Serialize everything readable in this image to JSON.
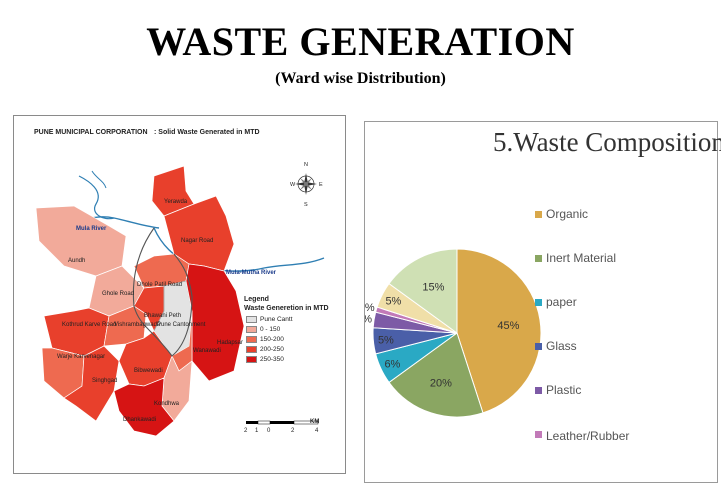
{
  "page": {
    "title": "WASTE GENERATION",
    "subtitle": "(Ward wise Distribution)"
  },
  "map": {
    "org": "PUNE MUNICIPAL CORPORATION",
    "caption": ": Solid Waste Generated in MTD",
    "compass": {
      "n": "N",
      "s": "S",
      "e": "E",
      "w": "W"
    },
    "rivers": [
      "Mula River",
      "Mula-Mutha River"
    ],
    "wards": [
      "Yerawda",
      "Nagar Road",
      "Aundh",
      "Ghole Road",
      "Dhole Patil Road",
      "Bhawani Peth",
      "Kothrud Karve Road",
      "Vishrambagwada",
      "Pune Cantonment",
      "Warje Karvenagar",
      "Wanawadi",
      "Hadapsar",
      "Bibwewadi",
      "Singhgad",
      "Kondhwa",
      "Dhankawadi"
    ],
    "legend": {
      "title": "Legend",
      "subtitle": "Waste Generetion in MTD",
      "items": [
        {
          "label": "Pune Cantt",
          "color": "#e3e3e3"
        },
        {
          "label": "0 - 150",
          "color": "#f2aa9a"
        },
        {
          "label": "150-200",
          "color": "#ee6a50"
        },
        {
          "label": "200-250",
          "color": "#e8402c"
        },
        {
          "label": "250-350",
          "color": "#d61414"
        }
      ]
    },
    "scale": {
      "unit": "KM",
      "ticks": [
        "2",
        "1",
        "0",
        "2",
        "4"
      ]
    }
  },
  "chart_data": {
    "type": "pie",
    "title": "5.Waste Composition",
    "slices": [
      {
        "name": "Organic",
        "value": 45,
        "label": "45%",
        "color": "#d9a84a"
      },
      {
        "name": "Inert Material",
        "value": 20,
        "label": "20%",
        "color": "#8aa662"
      },
      {
        "name": "paper",
        "value": 6,
        "label": "6%",
        "color": "#2aa9c4"
      },
      {
        "name": "Glass",
        "value": 5,
        "label": "5%",
        "color": "#4a5fa8"
      },
      {
        "name": "Plastic",
        "value": 3,
        "label": "3%",
        "color": "#7d5aa6"
      },
      {
        "name": "Leather/Rubber",
        "value": 1,
        "label": "1%",
        "color": "#c27ab8"
      },
      {
        "name": "",
        "value": 5,
        "label": "5%",
        "color": "#f0dfa8"
      },
      {
        "name": "",
        "value": 15,
        "label": "15%",
        "color": "#cfe0b4"
      }
    ],
    "legend": [
      {
        "label": "Organic",
        "color": "#d9a84a"
      },
      {
        "label": "Inert Material",
        "color": "#8aa662"
      },
      {
        "label": "paper",
        "color": "#2aa9c4"
      },
      {
        "label": "Glass",
        "color": "#4a5fa8"
      },
      {
        "label": "Plastic",
        "color": "#7d5aa6"
      },
      {
        "label": "Leather/Rubber",
        "color": "#c27ab8"
      }
    ]
  }
}
